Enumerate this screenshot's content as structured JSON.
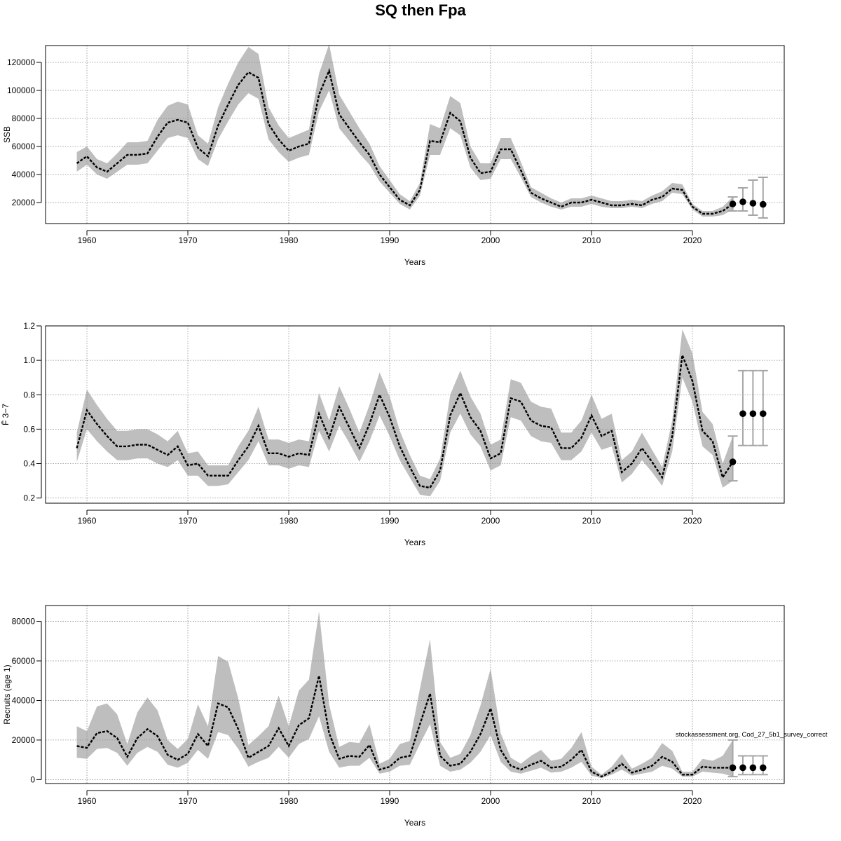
{
  "title": "SQ then Fpa",
  "credit": "stockassessment.org, Cod_27_5b1_survey_correct",
  "colors": {
    "band": "#bebebe",
    "line": "#000000",
    "dot": "#000000",
    "whisker": "#a6a6a6",
    "grid": "#8c8c8c"
  },
  "chart_data": [
    {
      "type": "line",
      "name": "ssb",
      "xlabel": "Years",
      "ylabel": "SSB",
      "xlim": [
        1955.9,
        2029.1
      ],
      "ylim": [
        5000,
        132000
      ],
      "xticks": [
        1960,
        1970,
        1980,
        1990,
        2000,
        2010,
        2020
      ],
      "yticks": [
        20000,
        40000,
        60000,
        80000,
        100000,
        120000
      ],
      "ytick_labels": [
        "20000",
        "40000",
        "60000",
        "80000",
        "100000",
        "120000"
      ],
      "grid": true,
      "x": [
        1959,
        1960,
        1961,
        1962,
        1963,
        1964,
        1965,
        1966,
        1967,
        1968,
        1969,
        1970,
        1971,
        1972,
        1973,
        1974,
        1975,
        1976,
        1977,
        1978,
        1979,
        1980,
        1981,
        1982,
        1983,
        1984,
        1985,
        1986,
        1987,
        1988,
        1989,
        1990,
        1991,
        1992,
        1993,
        1994,
        1995,
        1996,
        1997,
        1998,
        1999,
        2000,
        2001,
        2002,
        2003,
        2004,
        2005,
        2006,
        2007,
        2008,
        2009,
        2010,
        2011,
        2012,
        2013,
        2014,
        2015,
        2016,
        2017,
        2018,
        2019,
        2020,
        2021,
        2022,
        2023,
        2024
      ],
      "estimate": [
        48000,
        53000,
        45000,
        42000,
        48000,
        54000,
        54000,
        55000,
        67000,
        77000,
        79000,
        77000,
        59000,
        53000,
        75000,
        90000,
        104000,
        113000,
        109000,
        76000,
        65000,
        57000,
        60000,
        62000,
        97000,
        114000,
        83000,
        73000,
        63000,
        54000,
        40000,
        31000,
        22000,
        18000,
        29000,
        64000,
        63000,
        84000,
        78000,
        52000,
        41000,
        42000,
        58000,
        58000,
        43000,
        27000,
        23000,
        20000,
        17000,
        20000,
        20000,
        22000,
        20000,
        18000,
        18000,
        19000,
        18000,
        22000,
        24000,
        30000,
        29000,
        17000,
        12000,
        12000,
        14000,
        19000
      ],
      "lower": [
        42000,
        47000,
        40000,
        37000,
        42000,
        47000,
        47000,
        48000,
        57000,
        66000,
        68000,
        66000,
        51000,
        46000,
        65000,
        78000,
        90000,
        98000,
        94000,
        65000,
        56000,
        49000,
        52000,
        54000,
        85000,
        100000,
        73000,
        64000,
        55000,
        47000,
        35000,
        27000,
        19000,
        15000,
        25000,
        54000,
        54000,
        73000,
        68000,
        45000,
        36000,
        37000,
        51000,
        51000,
        38000,
        24000,
        20000,
        17000,
        15000,
        17000,
        17000,
        19000,
        17000,
        16000,
        16000,
        17000,
        16000,
        19000,
        21000,
        27000,
        26000,
        15000,
        10000,
        10000,
        11000,
        15000
      ],
      "upper": [
        56000,
        60000,
        51000,
        48000,
        55000,
        63000,
        63000,
        64000,
        79000,
        89000,
        92000,
        90000,
        68000,
        62000,
        88000,
        105000,
        120000,
        131000,
        126000,
        88000,
        75000,
        66000,
        69000,
        72000,
        112000,
        133000,
        97000,
        85000,
        73000,
        62000,
        46000,
        36000,
        26000,
        21000,
        34000,
        76000,
        73000,
        96000,
        91000,
        60000,
        48000,
        48000,
        66000,
        66000,
        49000,
        31000,
        27000,
        23000,
        20000,
        23000,
        23000,
        25000,
        23000,
        21000,
        21000,
        22000,
        21000,
        25000,
        28000,
        34000,
        33000,
        19000,
        14000,
        14000,
        17000,
        24000
      ],
      "forecast": {
        "x": [
          2024,
          2025,
          2026,
          2027
        ],
        "median": [
          19000,
          20500,
          19500,
          18700
        ],
        "lower": [
          14000,
          14000,
          11000,
          9000
        ],
        "upper": [
          24000,
          30500,
          36000,
          38000
        ]
      }
    },
    {
      "type": "line",
      "name": "fbar",
      "xlabel": "Years",
      "ylabel": "F̄ 3−7",
      "xlim": [
        1955.9,
        2029.1
      ],
      "ylim": [
        0.17,
        1.2
      ],
      "xticks": [
        1960,
        1970,
        1980,
        1990,
        2000,
        2010,
        2020
      ],
      "yticks": [
        0.2,
        0.4,
        0.6,
        0.8,
        1.0,
        1.2
      ],
      "ytick_labels": [
        "0.2",
        "0.4",
        "0.6",
        "0.8",
        "1.0",
        "1.2"
      ],
      "grid": true,
      "x": [
        1959,
        1960,
        1961,
        1962,
        1963,
        1964,
        1965,
        1966,
        1967,
        1968,
        1969,
        1970,
        1971,
        1972,
        1973,
        1974,
        1975,
        1976,
        1977,
        1978,
        1979,
        1980,
        1981,
        1982,
        1983,
        1984,
        1985,
        1986,
        1987,
        1988,
        1989,
        1990,
        1991,
        1992,
        1993,
        1994,
        1995,
        1996,
        1997,
        1998,
        1999,
        2000,
        2001,
        2002,
        2003,
        2004,
        2005,
        2006,
        2007,
        2008,
        2009,
        2010,
        2011,
        2012,
        2013,
        2014,
        2015,
        2016,
        2017,
        2018,
        2019,
        2020,
        2021,
        2022,
        2023,
        2024
      ],
      "estimate": [
        0.49,
        0.71,
        0.63,
        0.56,
        0.5,
        0.5,
        0.51,
        0.51,
        0.48,
        0.45,
        0.5,
        0.39,
        0.4,
        0.33,
        0.33,
        0.33,
        0.42,
        0.5,
        0.62,
        0.46,
        0.46,
        0.44,
        0.46,
        0.45,
        0.69,
        0.55,
        0.73,
        0.61,
        0.49,
        0.63,
        0.8,
        0.67,
        0.5,
        0.38,
        0.27,
        0.26,
        0.36,
        0.68,
        0.81,
        0.67,
        0.59,
        0.43,
        0.46,
        0.78,
        0.76,
        0.65,
        0.62,
        0.61,
        0.49,
        0.49,
        0.55,
        0.68,
        0.56,
        0.59,
        0.35,
        0.4,
        0.49,
        0.41,
        0.32,
        0.56,
        1.03,
        0.88,
        0.59,
        0.53,
        0.32,
        0.41
      ],
      "lower": [
        0.41,
        0.6,
        0.53,
        0.47,
        0.42,
        0.42,
        0.43,
        0.43,
        0.4,
        0.38,
        0.42,
        0.33,
        0.33,
        0.27,
        0.27,
        0.28,
        0.35,
        0.42,
        0.53,
        0.39,
        0.39,
        0.37,
        0.39,
        0.38,
        0.59,
        0.47,
        0.62,
        0.52,
        0.41,
        0.53,
        0.68,
        0.56,
        0.42,
        0.32,
        0.22,
        0.21,
        0.3,
        0.58,
        0.69,
        0.57,
        0.5,
        0.36,
        0.39,
        0.67,
        0.65,
        0.56,
        0.53,
        0.52,
        0.42,
        0.42,
        0.47,
        0.58,
        0.48,
        0.5,
        0.29,
        0.34,
        0.42,
        0.35,
        0.27,
        0.47,
        0.9,
        0.76,
        0.5,
        0.45,
        0.26,
        0.3
      ],
      "upper": [
        0.58,
        0.83,
        0.74,
        0.66,
        0.59,
        0.59,
        0.6,
        0.6,
        0.57,
        0.53,
        0.59,
        0.46,
        0.47,
        0.39,
        0.39,
        0.39,
        0.5,
        0.59,
        0.73,
        0.54,
        0.54,
        0.52,
        0.54,
        0.53,
        0.81,
        0.65,
        0.85,
        0.72,
        0.58,
        0.74,
        0.93,
        0.79,
        0.59,
        0.45,
        0.33,
        0.31,
        0.43,
        0.8,
        0.94,
        0.79,
        0.69,
        0.51,
        0.54,
        0.89,
        0.87,
        0.76,
        0.73,
        0.72,
        0.58,
        0.58,
        0.65,
        0.8,
        0.66,
        0.69,
        0.42,
        0.47,
        0.58,
        0.48,
        0.38,
        0.65,
        1.18,
        1.04,
        0.7,
        0.63,
        0.4,
        0.56
      ],
      "forecast": {
        "x": [
          2024,
          2025,
          2026,
          2027
        ],
        "median": [
          0.41,
          0.69,
          0.69,
          0.69
        ],
        "lower": [
          0.3,
          0.505,
          0.505,
          0.505
        ],
        "upper": [
          0.56,
          0.94,
          0.94,
          0.94
        ]
      }
    },
    {
      "type": "line",
      "name": "recruits",
      "xlabel": "Years",
      "ylabel": "Recruits (age 1)",
      "xlim": [
        1955.9,
        2029.1
      ],
      "ylim": [
        -2000,
        88000
      ],
      "xticks": [
        1960,
        1970,
        1980,
        1990,
        2000,
        2010,
        2020
      ],
      "yticks": [
        0,
        20000,
        40000,
        60000,
        80000
      ],
      "ytick_labels": [
        "0",
        "20000",
        "40000",
        "60000",
        "80000"
      ],
      "grid": true,
      "x": [
        1959,
        1960,
        1961,
        1962,
        1963,
        1964,
        1965,
        1966,
        1967,
        1968,
        1969,
        1970,
        1971,
        1972,
        1973,
        1974,
        1975,
        1976,
        1977,
        1978,
        1979,
        1980,
        1981,
        1982,
        1983,
        1984,
        1985,
        1986,
        1987,
        1988,
        1989,
        1990,
        1991,
        1992,
        1993,
        1994,
        1995,
        1996,
        1997,
        1998,
        1999,
        2000,
        2001,
        2002,
        2003,
        2004,
        2005,
        2006,
        2007,
        2008,
        2009,
        2010,
        2011,
        2012,
        2013,
        2014,
        2015,
        2016,
        2017,
        2018,
        2019,
        2020,
        2021,
        2022,
        2023,
        2024
      ],
      "estimate": [
        17000,
        16000,
        23500,
        24500,
        21000,
        11500,
        21000,
        25500,
        22000,
        12500,
        10000,
        13000,
        23000,
        17000,
        38500,
        36500,
        25500,
        11000,
        14000,
        17000,
        26000,
        17000,
        27500,
        31000,
        52500,
        23500,
        10500,
        12000,
        11500,
        17500,
        5000,
        6500,
        11000,
        12000,
        28000,
        43500,
        12000,
        7000,
        8000,
        14000,
        23000,
        36000,
        15000,
        7000,
        5000,
        7500,
        9500,
        6000,
        6500,
        10000,
        15000,
        4000,
        1500,
        4000,
        8000,
        3500,
        5000,
        7000,
        11500,
        9000,
        2500,
        2500,
        6500,
        6000,
        6000,
        6000
      ],
      "lower": [
        11000,
        10500,
        15500,
        16000,
        13500,
        7000,
        13500,
        16500,
        14000,
        7500,
        6000,
        8500,
        15000,
        10500,
        24000,
        22500,
        15500,
        6500,
        9000,
        11000,
        16500,
        11000,
        18000,
        20500,
        32000,
        14000,
        6000,
        7000,
        7000,
        11000,
        3000,
        4000,
        7000,
        7500,
        18000,
        28000,
        7000,
        4000,
        5000,
        8500,
        14000,
        22500,
        9000,
        4000,
        3000,
        4500,
        6000,
        3500,
        4000,
        6000,
        9000,
        2000,
        700,
        2500,
        5000,
        2000,
        3000,
        4000,
        7000,
        5500,
        1500,
        1500,
        4000,
        3500,
        3000,
        1500
      ],
      "upper": [
        27000,
        24500,
        37000,
        38500,
        33000,
        18000,
        34000,
        41500,
        35000,
        20000,
        15500,
        20500,
        38000,
        27000,
        62500,
        59500,
        41000,
        17500,
        22000,
        27000,
        42500,
        27000,
        45000,
        50500,
        85000,
        38000,
        16500,
        19000,
        18500,
        28000,
        8000,
        10500,
        18000,
        19500,
        46000,
        71000,
        19000,
        11000,
        13000,
        22500,
        37500,
        56000,
        23500,
        11000,
        8000,
        12000,
        15000,
        9500,
        10500,
        16000,
        24000,
        6500,
        2500,
        6500,
        13000,
        5500,
        8000,
        11000,
        18500,
        14500,
        4000,
        4000,
        10500,
        9500,
        12000,
        20000
      ],
      "forecast": {
        "x": [
          2024,
          2025,
          2026,
          2027
        ],
        "median": [
          6000,
          6000,
          6000,
          6000
        ],
        "lower": [
          1500,
          2500,
          2500,
          2500
        ],
        "upper": [
          20000,
          12000,
          12000,
          12000
        ]
      }
    }
  ]
}
